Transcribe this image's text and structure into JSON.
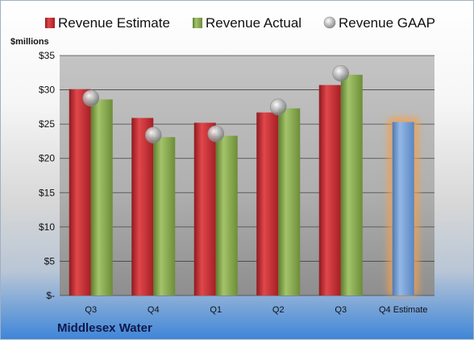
{
  "chart_data": {
    "type": "bar",
    "title": "",
    "ylabel": "$millions",
    "xlabel": "",
    "company": "Middlesex Water",
    "categories": [
      "Q3",
      "Q4",
      "Q1",
      "Q2",
      "Q3",
      "Q4 Estimate"
    ],
    "ylim": [
      0,
      35
    ],
    "yticks": [
      0,
      5,
      10,
      15,
      20,
      25,
      30,
      35
    ],
    "ytick_labels": [
      "$-",
      "$5",
      "$10",
      "$15",
      "$20",
      "$25",
      "$30",
      "$35"
    ],
    "grid": true,
    "legend_position": "top",
    "series": [
      {
        "name": "Revenue Estimate",
        "kind": "bar",
        "color": "#c0282d",
        "values": [
          30.1,
          25.9,
          25.2,
          26.7,
          30.7,
          null
        ]
      },
      {
        "name": "Revenue Actual",
        "kind": "bar",
        "color": "#84a648",
        "values": [
          28.6,
          23.1,
          23.3,
          27.3,
          32.2,
          null
        ]
      },
      {
        "name": "Revenue GAAP",
        "kind": "marker",
        "color": "#b4b4b4",
        "values": [
          28.8,
          23.4,
          23.6,
          27.5,
          32.4,
          null
        ]
      }
    ],
    "estimate_bar": {
      "category": "Q4 Estimate",
      "value": 25.3,
      "color": "#6e9bd4",
      "glow": "#f0a050"
    }
  }
}
